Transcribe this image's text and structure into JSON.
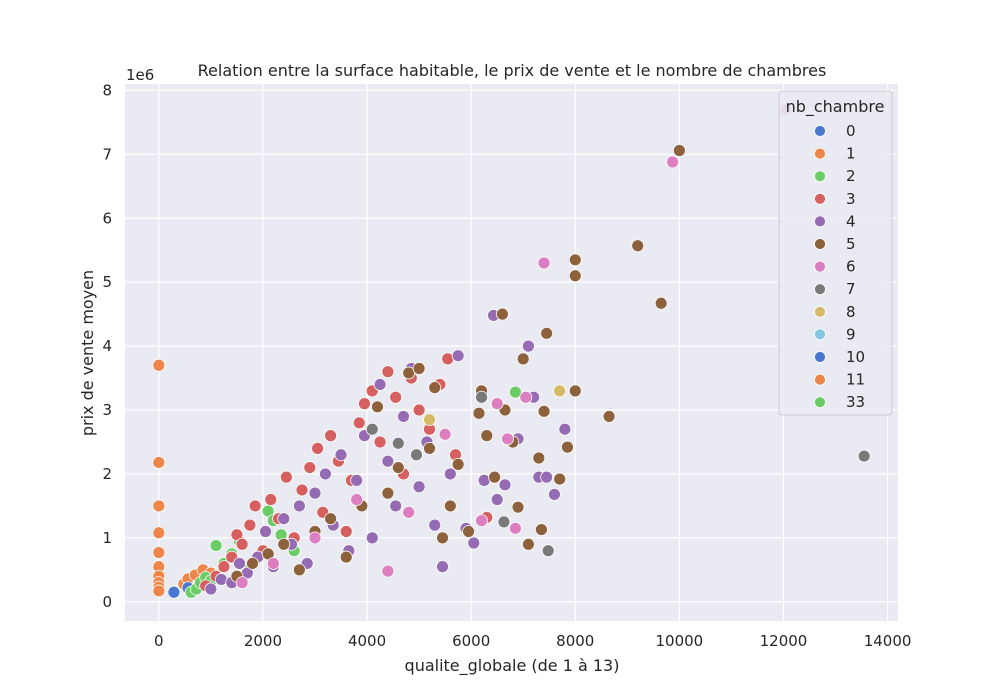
{
  "chart_data": {
    "type": "scatter",
    "title": "Relation entre la surface habitable, le prix de vente et le nombre de chambres",
    "xlabel": "qualite_globale (de 1 à 13)",
    "ylabel": "prix de vente moyen",
    "y_offset_label": "1e6",
    "xlim": [
      -650,
      14200
    ],
    "ylim": [
      -0.3,
      8.1
    ],
    "x_ticks": [
      0,
      2000,
      4000,
      6000,
      8000,
      10000,
      12000,
      14000
    ],
    "x_tick_labels": [
      "0",
      "2000",
      "4000",
      "6000",
      "8000",
      "10000",
      "12000",
      "14000"
    ],
    "y_ticks": [
      0,
      1,
      2,
      3,
      4,
      5,
      6,
      7,
      8
    ],
    "y_tick_labels": [
      "0",
      "1",
      "2",
      "3",
      "4",
      "5",
      "6",
      "7",
      "8"
    ],
    "grid": true,
    "legend": {
      "title": "nb_chambre",
      "placement": "upper-right",
      "entries": [
        {
          "label": "0",
          "color": "#4878d0"
        },
        {
          "label": "1",
          "color": "#ee854a"
        },
        {
          "label": "2",
          "color": "#6acc64"
        },
        {
          "label": "3",
          "color": "#d65f5f"
        },
        {
          "label": "4",
          "color": "#956cb4"
        },
        {
          "label": "5",
          "color": "#8c613c"
        },
        {
          "label": "6",
          "color": "#dc7ec0"
        },
        {
          "label": "7",
          "color": "#797979"
        },
        {
          "label": "8",
          "color": "#d5bb67"
        },
        {
          "label": "9",
          "color": "#82c6e2"
        },
        {
          "label": "10",
          "color": "#4878d0"
        },
        {
          "label": "11",
          "color": "#ee854a"
        },
        {
          "label": "33",
          "color": "#6acc64"
        }
      ]
    },
    "series": [
      {
        "name": "1",
        "points": [
          [
            0,
            3.7
          ],
          [
            0,
            2.18
          ],
          [
            0,
            1.5
          ],
          [
            0,
            1.08
          ],
          [
            0,
            0.77
          ],
          [
            0,
            0.55
          ],
          [
            0,
            0.4
          ],
          [
            0,
            0.3
          ],
          [
            0,
            0.23
          ],
          [
            0,
            0.17
          ],
          [
            480,
            0.28
          ],
          [
            560,
            0.36
          ],
          [
            700,
            0.42
          ],
          [
            850,
            0.5
          ],
          [
            1000,
            0.45
          ]
        ]
      },
      {
        "name": "0",
        "points": [
          [
            290,
            0.15
          ],
          [
            560,
            0.22
          ]
        ]
      },
      {
        "name": "2",
        "points": [
          [
            620,
            0.15
          ],
          [
            720,
            0.2
          ],
          [
            800,
            0.3
          ],
          [
            900,
            0.38
          ],
          [
            1000,
            0.33
          ],
          [
            1100,
            0.88
          ],
          [
            1250,
            0.6
          ],
          [
            1400,
            0.75
          ],
          [
            1550,
            0.95
          ],
          [
            1700,
            0.5
          ],
          [
            2100,
            1.42
          ],
          [
            2200,
            1.27
          ],
          [
            2350,
            1.05
          ],
          [
            2600,
            0.8
          ],
          [
            6850,
            3.28
          ]
        ]
      },
      {
        "name": "3",
        "points": [
          [
            900,
            0.25
          ],
          [
            1100,
            0.4
          ],
          [
            1250,
            0.55
          ],
          [
            1400,
            0.7
          ],
          [
            1500,
            1.05
          ],
          [
            1600,
            0.9
          ],
          [
            1750,
            1.2
          ],
          [
            1850,
            1.5
          ],
          [
            2000,
            0.8
          ],
          [
            2150,
            1.6
          ],
          [
            2300,
            1.3
          ],
          [
            2450,
            1.95
          ],
          [
            2600,
            1.0
          ],
          [
            2750,
            1.75
          ],
          [
            2900,
            2.1
          ],
          [
            3050,
            2.4
          ],
          [
            3150,
            1.4
          ],
          [
            3300,
            2.6
          ],
          [
            3450,
            2.2
          ],
          [
            3600,
            1.1
          ],
          [
            3700,
            1.9
          ],
          [
            3850,
            2.8
          ],
          [
            3950,
            3.1
          ],
          [
            4100,
            3.3
          ],
          [
            4250,
            2.5
          ],
          [
            4400,
            3.6
          ],
          [
            4550,
            3.2
          ],
          [
            4700,
            2.0
          ],
          [
            4850,
            3.5
          ],
          [
            5000,
            3.0
          ],
          [
            5200,
            2.7
          ],
          [
            5400,
            3.4
          ],
          [
            5550,
            3.8
          ],
          [
            5700,
            2.3
          ],
          [
            6300,
            1.32
          ]
        ]
      },
      {
        "name": "4",
        "points": [
          [
            1000,
            0.2
          ],
          [
            1200,
            0.35
          ],
          [
            1400,
            0.3
          ],
          [
            1550,
            0.6
          ],
          [
            1700,
            0.45
          ],
          [
            1900,
            0.7
          ],
          [
            2050,
            1.1
          ],
          [
            2200,
            0.55
          ],
          [
            2400,
            1.3
          ],
          [
            2550,
            0.9
          ],
          [
            2700,
            1.5
          ],
          [
            2850,
            0.6
          ],
          [
            3000,
            1.7
          ],
          [
            3200,
            2.0
          ],
          [
            3350,
            1.2
          ],
          [
            3500,
            2.3
          ],
          [
            3650,
            0.8
          ],
          [
            3800,
            1.9
          ],
          [
            3950,
            2.6
          ],
          [
            4100,
            1.0
          ],
          [
            4250,
            3.4
          ],
          [
            4400,
            2.2
          ],
          [
            4550,
            1.5
          ],
          [
            4700,
            2.9
          ],
          [
            4850,
            3.65
          ],
          [
            5000,
            1.8
          ],
          [
            5150,
            2.5
          ],
          [
            5300,
            1.2
          ],
          [
            5450,
            0.55
          ],
          [
            5600,
            2.0
          ],
          [
            5750,
            3.85
          ],
          [
            5900,
            1.15
          ],
          [
            6050,
            0.92
          ],
          [
            6250,
            1.9
          ],
          [
            6430,
            4.48
          ],
          [
            6500,
            1.6
          ],
          [
            6650,
            1.83
          ],
          [
            6900,
            2.55
          ],
          [
            7100,
            4.0
          ],
          [
            7200,
            3.2
          ],
          [
            7300,
            1.95
          ],
          [
            7450,
            1.95
          ],
          [
            7600,
            1.68
          ],
          [
            7800,
            2.7
          ]
        ]
      },
      {
        "name": "5",
        "points": [
          [
            1500,
            0.4
          ],
          [
            1800,
            0.6
          ],
          [
            2100,
            0.75
          ],
          [
            2400,
            0.9
          ],
          [
            2700,
            0.5
          ],
          [
            3000,
            1.1
          ],
          [
            3300,
            1.3
          ],
          [
            3600,
            0.7
          ],
          [
            3900,
            1.5
          ],
          [
            4200,
            3.05
          ],
          [
            4400,
            1.7
          ],
          [
            4600,
            2.1
          ],
          [
            4800,
            3.58
          ],
          [
            5000,
            3.65
          ],
          [
            5200,
            2.4
          ],
          [
            5300,
            3.35
          ],
          [
            5450,
            1.0
          ],
          [
            5600,
            1.5
          ],
          [
            5750,
            2.15
          ],
          [
            5950,
            1.1
          ],
          [
            6150,
            2.95
          ],
          [
            6200,
            3.3
          ],
          [
            6300,
            2.6
          ],
          [
            6450,
            1.95
          ],
          [
            6600,
            4.5
          ],
          [
            6650,
            3.0
          ],
          [
            6800,
            2.5
          ],
          [
            6900,
            1.48
          ],
          [
            7000,
            3.8
          ],
          [
            7100,
            0.9
          ],
          [
            7300,
            2.25
          ],
          [
            7350,
            1.13
          ],
          [
            7400,
            2.98
          ],
          [
            7450,
            4.2
          ],
          [
            7700,
            1.92
          ],
          [
            7850,
            2.42
          ],
          [
            8000,
            5.35
          ],
          [
            8000,
            5.1
          ],
          [
            8000,
            3.3
          ],
          [
            8650,
            2.9
          ],
          [
            9200,
            5.57
          ],
          [
            9650,
            4.67
          ],
          [
            10000,
            7.06
          ]
        ]
      },
      {
        "name": "6",
        "points": [
          [
            1600,
            0.3
          ],
          [
            2200,
            0.6
          ],
          [
            3000,
            1.0
          ],
          [
            3800,
            1.6
          ],
          [
            4400,
            0.48
          ],
          [
            4800,
            1.4
          ],
          [
            5500,
            2.62
          ],
          [
            6200,
            1.27
          ],
          [
            6500,
            3.1
          ],
          [
            6700,
            2.55
          ],
          [
            6850,
            1.15
          ],
          [
            7050,
            3.2
          ],
          [
            7400,
            5.3
          ],
          [
            9870,
            6.88
          ],
          [
            12050,
            7.7
          ]
        ]
      },
      {
        "name": "7",
        "points": [
          [
            4100,
            2.7
          ],
          [
            4600,
            2.48
          ],
          [
            4950,
            2.3
          ],
          [
            6200,
            3.2
          ],
          [
            6630,
            1.25
          ],
          [
            7480,
            0.8
          ],
          [
            13550,
            2.28
          ]
        ]
      },
      {
        "name": "8",
        "points": [
          [
            5200,
            2.85
          ],
          [
            7700,
            3.3
          ]
        ]
      }
    ]
  }
}
